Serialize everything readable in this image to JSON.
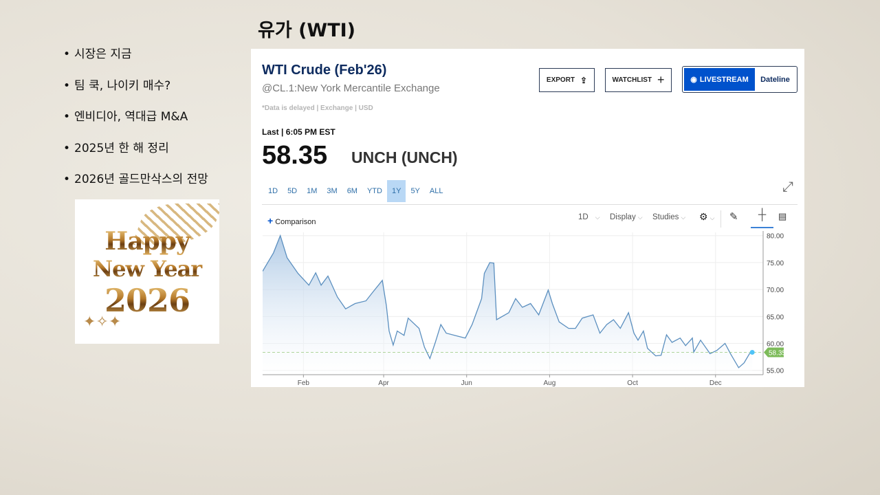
{
  "slide": {
    "title": "유가 (WTI)",
    "bullets": [
      "시장은 지금",
      "팀 쿡, 나이키 매수?",
      "엔비디아, 역대급 M&A",
      "2025년 한 해 정리",
      "2026년 골드만삭스의 전망"
    ],
    "greeting_image": {
      "lines": [
        "Happy",
        "New Year",
        "2026"
      ]
    }
  },
  "quote": {
    "name": "WTI Crude (Feb'26)",
    "exchange": "@CL.1:New York Mercantile Exchange",
    "delay_note": "*Data is delayed | Exchange | USD",
    "last_label": "Last | 6:05 PM EST",
    "price": "58.35",
    "change": "UNCH (UNCH)"
  },
  "buttons": {
    "export": "EXPORT",
    "watchlist": "WATCHLIST",
    "livestream": "LIVESTREAM",
    "dateline": "Dateline"
  },
  "ranges": {
    "items": [
      "1D",
      "5D",
      "1M",
      "3M",
      "6M",
      "YTD",
      "1Y",
      "5Y",
      "ALL"
    ],
    "active": "1Y"
  },
  "toolbar": {
    "comparison": "Comparison",
    "interval": "1D",
    "display": "Display",
    "studies": "Studies"
  },
  "colors": {
    "line": "#5b8fbf",
    "fill_top": "#a9c6e4",
    "last_tag": "#7dbb5a",
    "accent": "#0052cc",
    "dot": "#4fc3f7"
  },
  "chart_data": {
    "type": "area",
    "title": "",
    "xlabel": "",
    "ylabel": "",
    "x_ticks": [
      "Feb",
      "Apr",
      "Jun",
      "Aug",
      "Oct",
      "Dec"
    ],
    "x_tick_dates": [
      "2025-02-01",
      "2025-04-01",
      "2025-06-01",
      "2025-08-01",
      "2025-10-01",
      "2025-12-01"
    ],
    "y_ticks": [
      "55.00",
      "60.00",
      "65.00",
      "70.00",
      "75.00",
      "80.00"
    ],
    "xlim": [
      "2025-01-02",
      "2026-01-05"
    ],
    "ylim": [
      54.2,
      80.6
    ],
    "grid": true,
    "last_value_label": "58.35",
    "last_value": 58.35,
    "points": [
      [
        "2025-01-02",
        73.4
      ],
      [
        "2025-01-10",
        76.8
      ],
      [
        "2025-01-15",
        80.0
      ],
      [
        "2025-01-20",
        75.9
      ],
      [
        "2025-01-28",
        73.0
      ],
      [
        "2025-02-05",
        70.8
      ],
      [
        "2025-02-10",
        73.1
      ],
      [
        "2025-02-14",
        70.8
      ],
      [
        "2025-02-19",
        72.5
      ],
      [
        "2025-02-26",
        68.6
      ],
      [
        "2025-03-04",
        66.4
      ],
      [
        "2025-03-11",
        67.4
      ],
      [
        "2025-03-19",
        67.9
      ],
      [
        "2025-03-24",
        69.5
      ],
      [
        "2025-03-31",
        71.7
      ],
      [
        "2025-04-03",
        67.0
      ],
      [
        "2025-04-05",
        62.3
      ],
      [
        "2025-04-08",
        59.7
      ],
      [
        "2025-04-11",
        62.3
      ],
      [
        "2025-04-16",
        61.5
      ],
      [
        "2025-04-19",
        64.7
      ],
      [
        "2025-04-27",
        62.8
      ],
      [
        "2025-05-01",
        59.3
      ],
      [
        "2025-05-05",
        57.2
      ],
      [
        "2025-05-09",
        60.2
      ],
      [
        "2025-05-13",
        63.5
      ],
      [
        "2025-05-17",
        61.9
      ],
      [
        "2025-05-26",
        61.3
      ],
      [
        "2025-05-31",
        61.0
      ],
      [
        "2025-06-05",
        63.5
      ],
      [
        "2025-06-12",
        68.3
      ],
      [
        "2025-06-14",
        73.0
      ],
      [
        "2025-06-18",
        75.0
      ],
      [
        "2025-06-21",
        74.9
      ],
      [
        "2025-06-23",
        64.4
      ],
      [
        "2025-07-02",
        65.7
      ],
      [
        "2025-07-07",
        68.3
      ],
      [
        "2025-07-12",
        66.7
      ],
      [
        "2025-07-18",
        67.4
      ],
      [
        "2025-07-24",
        65.3
      ],
      [
        "2025-07-31",
        69.9
      ],
      [
        "2025-08-03",
        67.4
      ],
      [
        "2025-08-08",
        64.0
      ],
      [
        "2025-08-15",
        62.8
      ],
      [
        "2025-08-20",
        62.8
      ],
      [
        "2025-08-25",
        64.7
      ],
      [
        "2025-09-02",
        65.3
      ],
      [
        "2025-09-07",
        61.9
      ],
      [
        "2025-09-12",
        63.5
      ],
      [
        "2025-09-17",
        64.4
      ],
      [
        "2025-09-22",
        62.8
      ],
      [
        "2025-09-28",
        65.7
      ],
      [
        "2025-10-02",
        61.9
      ],
      [
        "2025-10-05",
        60.6
      ],
      [
        "2025-10-09",
        62.3
      ],
      [
        "2025-10-12",
        59.1
      ],
      [
        "2025-10-18",
        57.7
      ],
      [
        "2025-10-22",
        57.8
      ],
      [
        "2025-10-26",
        61.6
      ],
      [
        "2025-10-30",
        60.2
      ],
      [
        "2025-11-05",
        61.0
      ],
      [
        "2025-11-09",
        59.6
      ],
      [
        "2025-11-14",
        61.0
      ],
      [
        "2025-11-15",
        58.4
      ],
      [
        "2025-11-20",
        60.6
      ],
      [
        "2025-11-27",
        58.1
      ],
      [
        "2025-12-02",
        58.7
      ],
      [
        "2025-12-08",
        60.0
      ],
      [
        "2025-12-12",
        58.1
      ],
      [
        "2025-12-18",
        55.5
      ],
      [
        "2025-12-22",
        56.4
      ],
      [
        "2025-12-26",
        58.1
      ],
      [
        "2025-12-28",
        58.35
      ]
    ]
  }
}
